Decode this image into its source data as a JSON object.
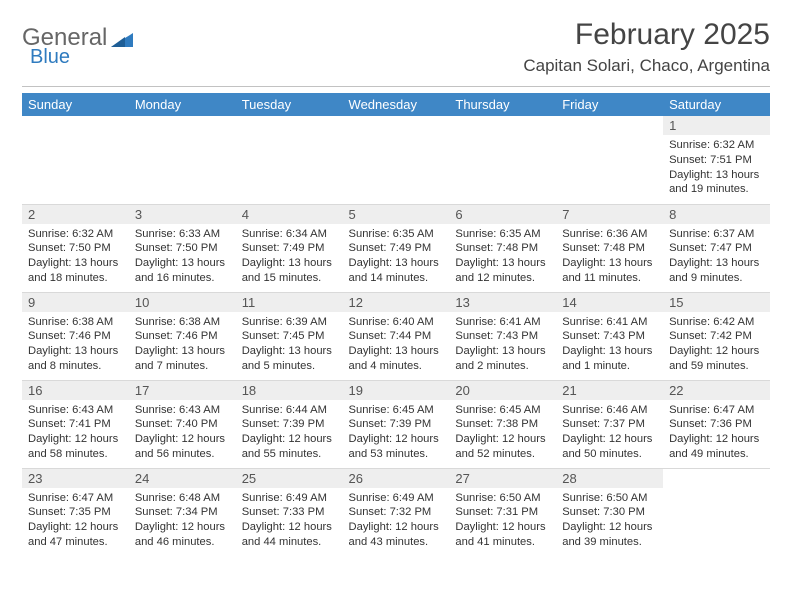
{
  "brand": {
    "part1": "General",
    "part2": "Blue"
  },
  "title": "February 2025",
  "location": "Capitan Solari, Chaco, Argentina",
  "colors": {
    "header_bg": "#3f87c6",
    "header_fg": "#ffffff",
    "daynum_bg": "#eeeeee",
    "text": "#333333",
    "rule": "#c2c2c2",
    "logo_blue": "#2f7bbf"
  },
  "weekdays": [
    "Sunday",
    "Monday",
    "Tuesday",
    "Wednesday",
    "Thursday",
    "Friday",
    "Saturday"
  ],
  "weeks": [
    [
      null,
      null,
      null,
      null,
      null,
      null,
      {
        "d": "1",
        "sunrise": "6:32 AM",
        "sunset": "7:51 PM",
        "daylight": "13 hours and 19 minutes."
      }
    ],
    [
      {
        "d": "2",
        "sunrise": "6:32 AM",
        "sunset": "7:50 PM",
        "daylight": "13 hours and 18 minutes."
      },
      {
        "d": "3",
        "sunrise": "6:33 AM",
        "sunset": "7:50 PM",
        "daylight": "13 hours and 16 minutes."
      },
      {
        "d": "4",
        "sunrise": "6:34 AM",
        "sunset": "7:49 PM",
        "daylight": "13 hours and 15 minutes."
      },
      {
        "d": "5",
        "sunrise": "6:35 AM",
        "sunset": "7:49 PM",
        "daylight": "13 hours and 14 minutes."
      },
      {
        "d": "6",
        "sunrise": "6:35 AM",
        "sunset": "7:48 PM",
        "daylight": "13 hours and 12 minutes."
      },
      {
        "d": "7",
        "sunrise": "6:36 AM",
        "sunset": "7:48 PM",
        "daylight": "13 hours and 11 minutes."
      },
      {
        "d": "8",
        "sunrise": "6:37 AM",
        "sunset": "7:47 PM",
        "daylight": "13 hours and 9 minutes."
      }
    ],
    [
      {
        "d": "9",
        "sunrise": "6:38 AM",
        "sunset": "7:46 PM",
        "daylight": "13 hours and 8 minutes."
      },
      {
        "d": "10",
        "sunrise": "6:38 AM",
        "sunset": "7:46 PM",
        "daylight": "13 hours and 7 minutes."
      },
      {
        "d": "11",
        "sunrise": "6:39 AM",
        "sunset": "7:45 PM",
        "daylight": "13 hours and 5 minutes."
      },
      {
        "d": "12",
        "sunrise": "6:40 AM",
        "sunset": "7:44 PM",
        "daylight": "13 hours and 4 minutes."
      },
      {
        "d": "13",
        "sunrise": "6:41 AM",
        "sunset": "7:43 PM",
        "daylight": "13 hours and 2 minutes."
      },
      {
        "d": "14",
        "sunrise": "6:41 AM",
        "sunset": "7:43 PM",
        "daylight": "13 hours and 1 minute."
      },
      {
        "d": "15",
        "sunrise": "6:42 AM",
        "sunset": "7:42 PM",
        "daylight": "12 hours and 59 minutes."
      }
    ],
    [
      {
        "d": "16",
        "sunrise": "6:43 AM",
        "sunset": "7:41 PM",
        "daylight": "12 hours and 58 minutes."
      },
      {
        "d": "17",
        "sunrise": "6:43 AM",
        "sunset": "7:40 PM",
        "daylight": "12 hours and 56 minutes."
      },
      {
        "d": "18",
        "sunrise": "6:44 AM",
        "sunset": "7:39 PM",
        "daylight": "12 hours and 55 minutes."
      },
      {
        "d": "19",
        "sunrise": "6:45 AM",
        "sunset": "7:39 PM",
        "daylight": "12 hours and 53 minutes."
      },
      {
        "d": "20",
        "sunrise": "6:45 AM",
        "sunset": "7:38 PM",
        "daylight": "12 hours and 52 minutes."
      },
      {
        "d": "21",
        "sunrise": "6:46 AM",
        "sunset": "7:37 PM",
        "daylight": "12 hours and 50 minutes."
      },
      {
        "d": "22",
        "sunrise": "6:47 AM",
        "sunset": "7:36 PM",
        "daylight": "12 hours and 49 minutes."
      }
    ],
    [
      {
        "d": "23",
        "sunrise": "6:47 AM",
        "sunset": "7:35 PM",
        "daylight": "12 hours and 47 minutes."
      },
      {
        "d": "24",
        "sunrise": "6:48 AM",
        "sunset": "7:34 PM",
        "daylight": "12 hours and 46 minutes."
      },
      {
        "d": "25",
        "sunrise": "6:49 AM",
        "sunset": "7:33 PM",
        "daylight": "12 hours and 44 minutes."
      },
      {
        "d": "26",
        "sunrise": "6:49 AM",
        "sunset": "7:32 PM",
        "daylight": "12 hours and 43 minutes."
      },
      {
        "d": "27",
        "sunrise": "6:50 AM",
        "sunset": "7:31 PM",
        "daylight": "12 hours and 41 minutes."
      },
      {
        "d": "28",
        "sunrise": "6:50 AM",
        "sunset": "7:30 PM",
        "daylight": "12 hours and 39 minutes."
      },
      null
    ]
  ],
  "labels": {
    "sunrise": "Sunrise:",
    "sunset": "Sunset:",
    "daylight": "Daylight:"
  }
}
